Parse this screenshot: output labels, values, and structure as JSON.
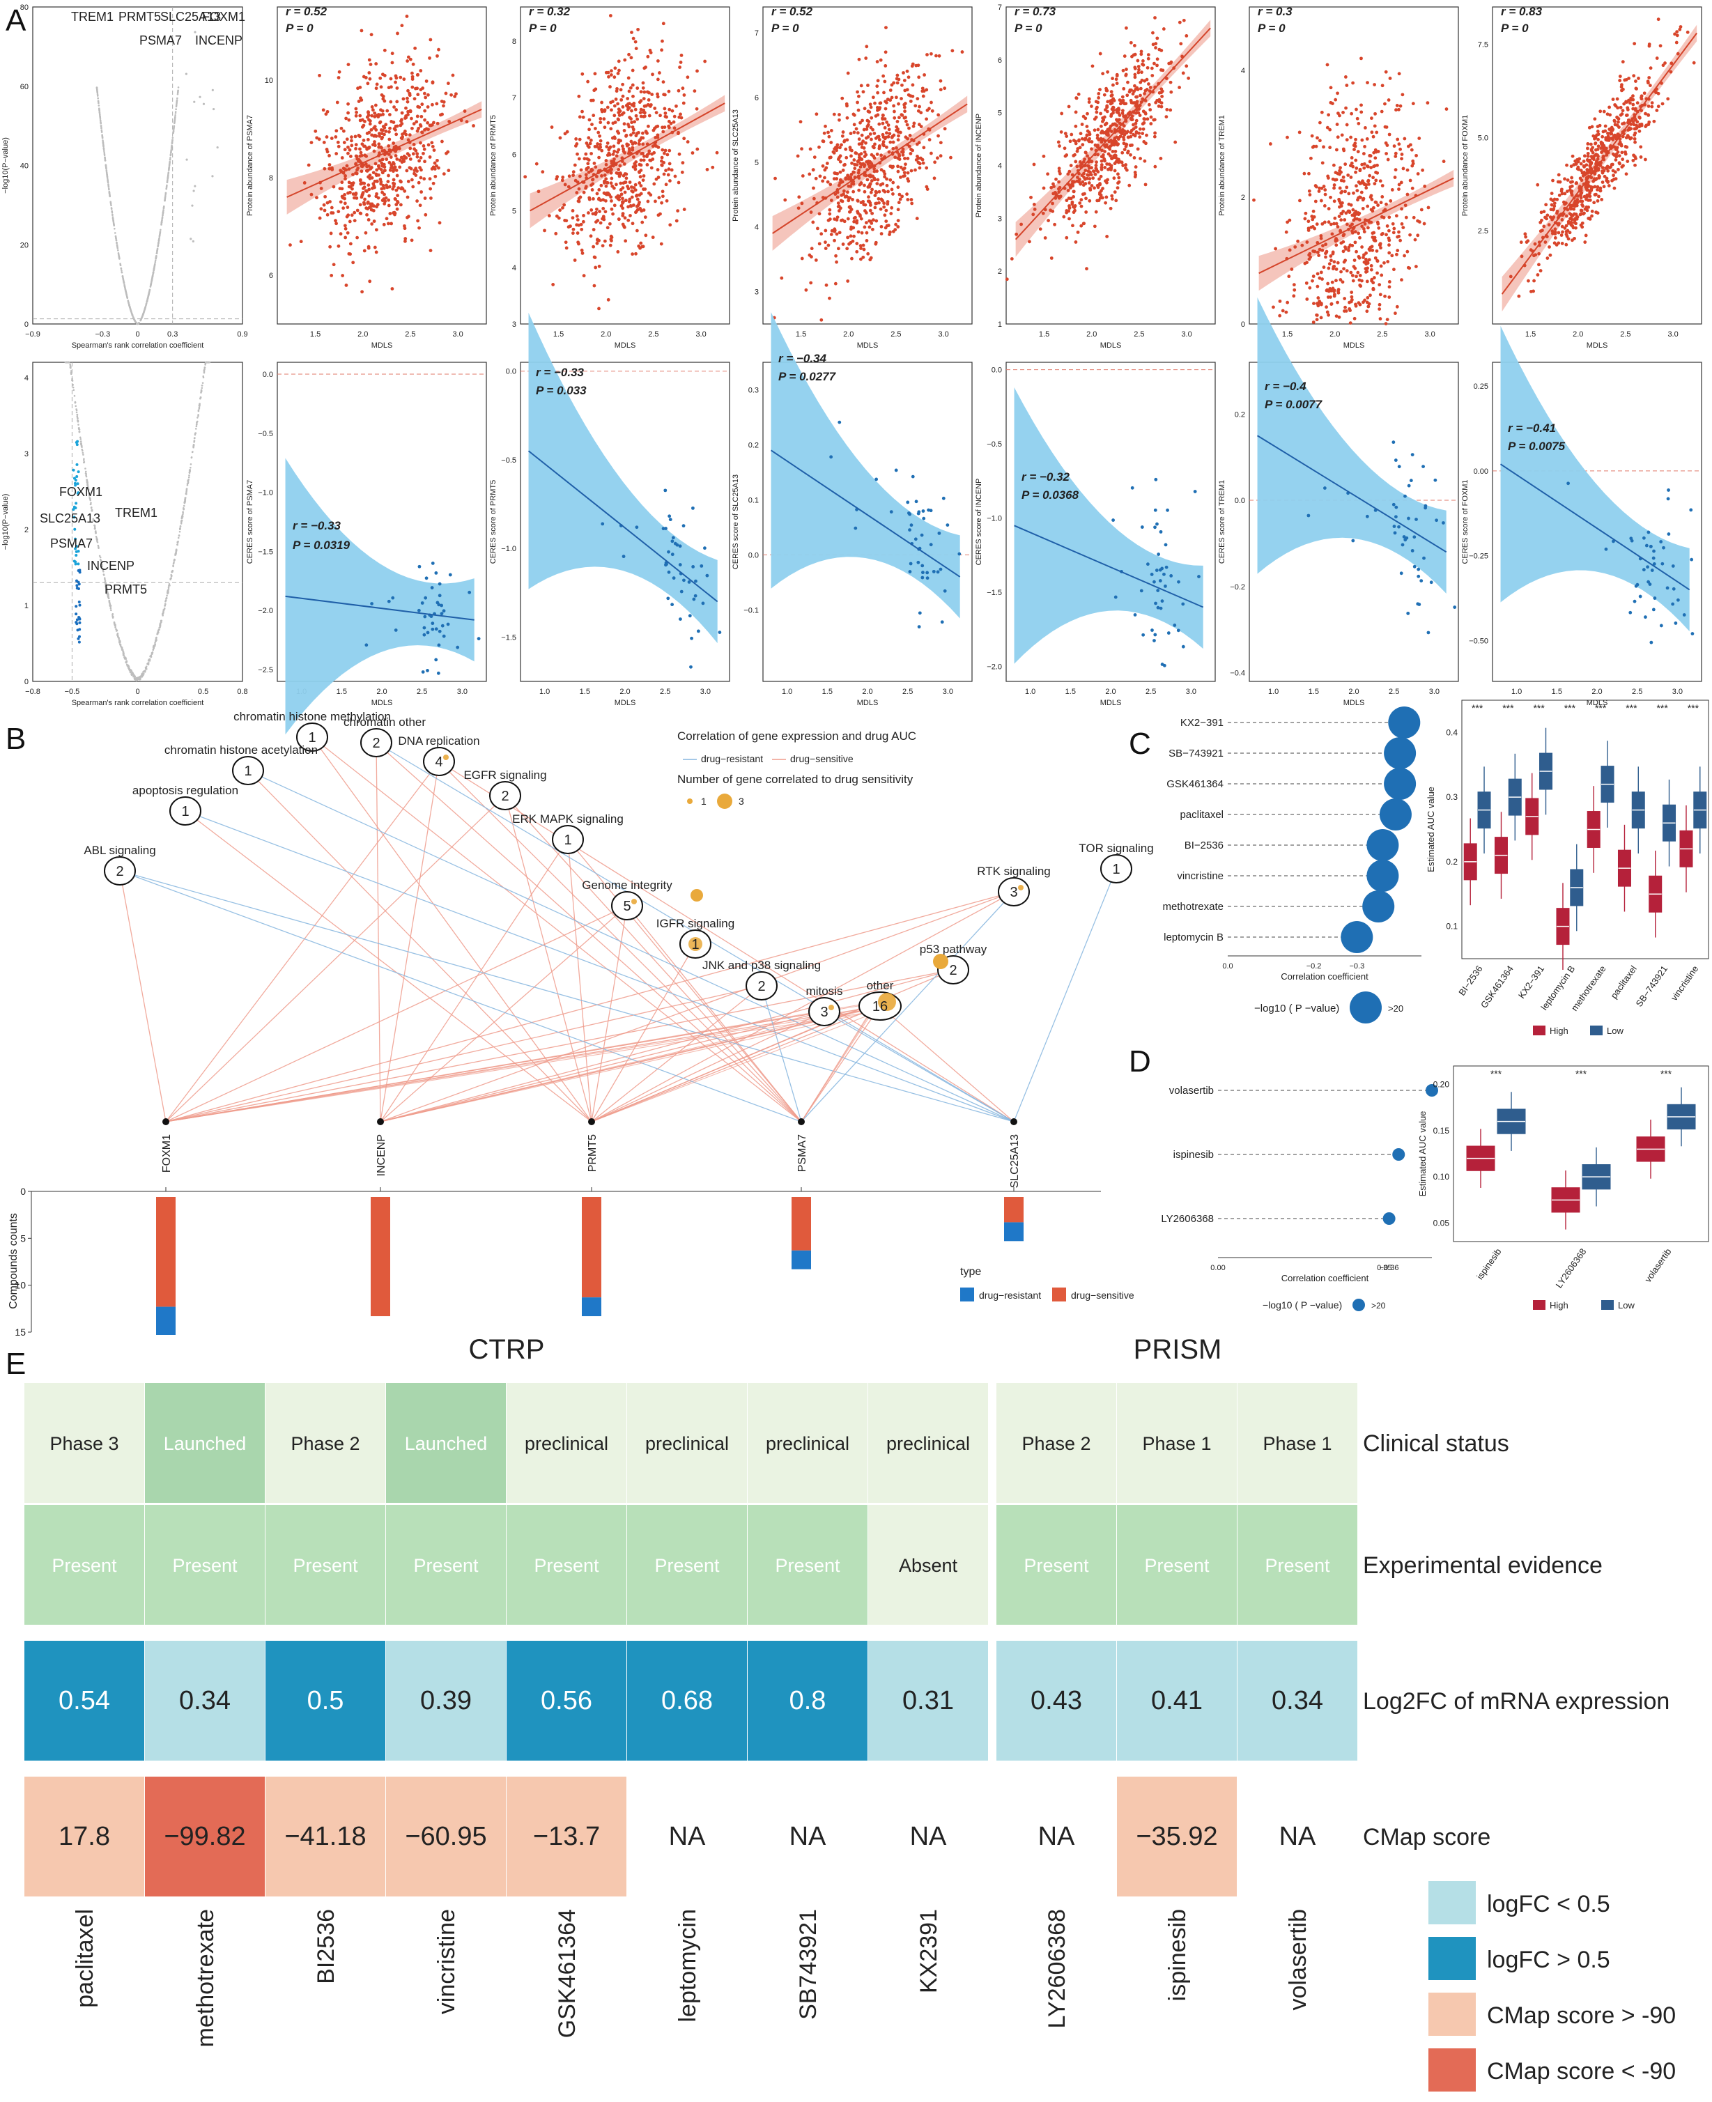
{
  "panel_letters": [
    "A",
    "B",
    "C",
    "D",
    "E"
  ],
  "colors": {
    "scatter_pos": "#d8452b",
    "band_pos": "#f2b7ab",
    "scatter_neg": "#1f6fb4",
    "band_neg": "#8fd0ee",
    "resistant": "#1f78c8",
    "sensitive": "#e05a3c",
    "high": "#b5213a",
    "low": "#2f5d8e",
    "clinical_launched": "#a9d6ad",
    "clinical_other": "#eaf3e2",
    "evidence_present": "#b8e0b9",
    "evidence_absent": "#eaf3e2",
    "logfc_low": "#b5dfe6",
    "logfc_high": "#1f93bf",
    "cmap_gt": "#f6c8af",
    "cmap_lt": "#e36b56",
    "node_fill": "#e9a93b"
  },
  "chart_data": [
    {
      "id": "A_top_volcano",
      "type": "scatter",
      "xlabel": "Spearman's rank correlation coefficient",
      "ylabel": "−log10(P−value)",
      "xticks": [
        "−0.9",
        "−0.3",
        "0",
        "0.3",
        "0.9"
      ],
      "yticks": [
        "0",
        "20",
        "40",
        "60",
        "80"
      ],
      "xlim": [
        -0.9,
        0.9
      ],
      "ylim": [
        0,
        80
      ],
      "labels": [
        "TREM1",
        "PRMT5",
        "SLC25A13",
        "FOXM1",
        "PSMA7",
        "INCENP"
      ]
    },
    {
      "id": "A_bottom_volcano",
      "type": "scatter",
      "xlabel": "Spearman's rank correlation coefficient",
      "ylabel": "−log10(P−value)",
      "xticks": [
        "−0.8",
        "−0.5",
        "0",
        "0.5",
        "0.8"
      ],
      "yticks": [
        "0",
        "1",
        "2",
        "3",
        "4"
      ],
      "xlim": [
        -0.8,
        0.8
      ],
      "ylim": [
        0,
        4.2
      ],
      "labels": [
        "FOXM1",
        "TREM1",
        "SLC25A13",
        "PSMA7",
        "INCENP",
        "PRMT5"
      ]
    },
    {
      "id": "A_top_scatters",
      "type": "scatter",
      "xlabel": "MDLS",
      "series": [
        {
          "gene": "PSMA7",
          "ylabel": "Protein abundance of PSMA7",
          "r": "r = 0.52",
          "p": "P = 0",
          "ylim": [
            5,
            11.5
          ],
          "yticks": [
            "6",
            "8",
            "10"
          ],
          "fit": [
            7.6,
            9.4
          ],
          "n": 650,
          "noise": 0.9
        },
        {
          "gene": "PRMT5",
          "ylabel": "Protein abundance of PRMT5",
          "r": "r = 0.32",
          "p": "P = 0",
          "ylim": [
            3,
            8.6
          ],
          "yticks": [
            "3",
            "4",
            "5",
            "6",
            "7",
            "8"
          ],
          "fit": [
            5.0,
            6.9
          ],
          "n": 650,
          "noise": 0.8
        },
        {
          "gene": "SLC25A13",
          "ylabel": "Protein abundance of SLC25A13",
          "r": "r = 0.52",
          "p": "P = 0",
          "ylim": [
            2.5,
            7.4
          ],
          "yticks": [
            "3",
            "4",
            "5",
            "6",
            "7"
          ],
          "fit": [
            3.9,
            5.9
          ],
          "n": 650,
          "noise": 0.7
        },
        {
          "gene": "INCENP",
          "ylabel": "Protein abundance of INCENP",
          "r": "r = 0.73",
          "p": "P = 0",
          "ylim": [
            1,
            7
          ],
          "yticks": [
            "1",
            "2",
            "3",
            "4",
            "5",
            "6",
            "7"
          ],
          "fit": [
            2.6,
            6.6
          ],
          "n": 650,
          "noise": 0.6
        },
        {
          "gene": "TREM1",
          "ylabel": "Protein abundance of TREM1",
          "r": "r = 0.3",
          "p": "P = 0",
          "ylim": [
            0,
            5
          ],
          "yticks": [
            "0",
            "2",
            "4"
          ],
          "fit": [
            0.8,
            2.3
          ],
          "n": 650,
          "noise": 1.0
        },
        {
          "gene": "FOXM1",
          "ylabel": "Protein abundance of FOXM1",
          "r": "r = 0.83",
          "p": "P = 0",
          "ylim": [
            0,
            8.5
          ],
          "yticks": [
            "2.5",
            "5.0",
            "7.5"
          ],
          "fit": [
            0.8,
            7.8
          ],
          "n": 650,
          "noise": 0.6
        }
      ],
      "xlim": [
        1.1,
        3.3
      ],
      "xticks": [
        "1.5",
        "2.0",
        "2.5",
        "3.0"
      ]
    },
    {
      "id": "A_bottom_scatters",
      "type": "scatter",
      "xlabel": "MDLS",
      "series": [
        {
          "gene": "PSMA7",
          "ylabel": "CERES score of PSMA7",
          "r": "r = −0.33",
          "p": "P = 0.0319",
          "ylim": [
            -2.6,
            0.1
          ],
          "yticks": [
            "0.0",
            "−0.5",
            "−1.0",
            "−1.5",
            "−2.0",
            "−2.5"
          ],
          "fit": [
            -1.88,
            -2.08
          ]
        },
        {
          "gene": "PRMT5",
          "ylabel": "CERES score of PRMT5",
          "r": "r = −0.33",
          "p": "P = 0.033",
          "ylim": [
            -1.75,
            0.05
          ],
          "yticks": [
            "0.0",
            "−0.5",
            "−1.0",
            "−1.5"
          ],
          "fit": [
            -0.45,
            -1.3
          ]
        },
        {
          "gene": "SLC25A13",
          "ylabel": "CERES score of SLC25A13",
          "r": "r = −0.34",
          "p": "P = 0.0277",
          "ylim": [
            -0.23,
            0.35
          ],
          "yticks": [
            "0.3",
            "0.2",
            "0.1",
            "0.0",
            "−0.1"
          ],
          "fit": [
            0.19,
            -0.04
          ]
        },
        {
          "gene": "INCENP",
          "ylabel": "CERES score of INCENP",
          "r": "r = −0.32",
          "p": "P = 0.0368",
          "ylim": [
            -2.1,
            0.05
          ],
          "yticks": [
            "0.0",
            "−0.5",
            "−1.0",
            "−1.5",
            "−2.0"
          ],
          "fit": [
            -1.05,
            -1.6
          ]
        },
        {
          "gene": "TREM1",
          "ylabel": "CERES score of TREM1",
          "r": "r = −0.4",
          "p": "P = 0.0077",
          "ylim": [
            -0.42,
            0.32
          ],
          "yticks": [
            "0.2",
            "0.0",
            "−0.2",
            "−0.4"
          ],
          "fit": [
            0.15,
            -0.12
          ]
        },
        {
          "gene": "FOXM1",
          "ylabel": "CERES score of FOXM1",
          "r": "r = −0.41",
          "p": "P = 0.0075",
          "ylim": [
            -0.62,
            0.32
          ],
          "yticks": [
            "0.25",
            "0.00",
            "−0.25",
            "−0.50"
          ],
          "fit": [
            0.02,
            -0.35
          ]
        }
      ],
      "xlim": [
        0.7,
        3.3
      ],
      "xticks": [
        "1.0",
        "1.5",
        "2.0",
        "2.5",
        "3.0"
      ]
    },
    {
      "id": "B_network",
      "type": "network",
      "legend_title": "Correlation of gene expression and drug AUC",
      "legend_items": [
        "drug−resistant",
        "drug−sensitive"
      ],
      "size_title": "Number of gene correlated to drug sensitivity",
      "size_items": [
        "1",
        "3"
      ],
      "pathways": [
        {
          "name": "chromatin  histone methylation",
          "count": "1"
        },
        {
          "name": "chromatin  other",
          "count": "2"
        },
        {
          "name": "DNA replication",
          "count": "4"
        },
        {
          "name": "chromatin  histone acetylation",
          "count": "1"
        },
        {
          "name": "EGFR signaling",
          "count": "2"
        },
        {
          "name": "apoptosis regulation",
          "count": "1"
        },
        {
          "name": "ERK MAPK signaling",
          "count": "1"
        },
        {
          "name": "ABL signaling",
          "count": "2"
        },
        {
          "name": "TOR signaling",
          "count": "1"
        },
        {
          "name": "Genome integrity",
          "count": "5"
        },
        {
          "name": "RTK signaling",
          "count": "3"
        },
        {
          "name": "IGFR signaling",
          "count": "1"
        },
        {
          "name": "p53 pathway",
          "count": "2"
        },
        {
          "name": "JNK and p38 signaling",
          "count": "2"
        },
        {
          "name": "other",
          "count": "16"
        },
        {
          "name": "mitosis",
          "count": "3"
        }
      ],
      "genes": [
        "FOXM1",
        "INCENP",
        "PRMT5",
        "PSMA7",
        "SLC25A13"
      ]
    },
    {
      "id": "B_bars",
      "type": "bar",
      "ylabel": "Compounds counts",
      "yticks": [
        "0",
        "5",
        "10",
        "15"
      ],
      "ylim": [
        0,
        15
      ],
      "categories": [
        "FOXM1",
        "INCENP",
        "PRMT5",
        "PSMA7",
        "SLC25A13"
      ],
      "series": [
        {
          "name": "drug−sensitive",
          "values": [
            12,
            13,
            11,
            6,
            3
          ]
        },
        {
          "name": "drug−resistant",
          "values": [
            3,
            0,
            2,
            2,
            2
          ]
        }
      ],
      "legend_title": "type",
      "legend_items": [
        "drug−resistant",
        "drug−sensitive"
      ]
    },
    {
      "id": "C_dot",
      "type": "scatter",
      "categories": [
        "KX2−391",
        "SB−743921",
        "GSK461364",
        "paclitaxel",
        "BI−2536",
        "vincristine",
        "methotrexate",
        "leptomycin B"
      ],
      "values": [
        -0.41,
        -0.4,
        -0.4,
        -0.39,
        -0.36,
        -0.36,
        -0.35,
        -0.3
      ],
      "xlabel": "Correlation coefficient",
      "xticks": [
        "0.0",
        "−0.2",
        "−0.3"
      ],
      "size_legend": "−log10 ( P −value)",
      "size_item": ">20"
    },
    {
      "id": "C_box",
      "type": "box",
      "ylabel": "Estimated AUC value",
      "yticks": [
        "0.1",
        "0.2",
        "0.3",
        "0.4"
      ],
      "ylim": [
        0.05,
        0.45
      ],
      "categories": [
        "BI−2536",
        "GSK461364",
        "KX2−391",
        "leptomycin B",
        "methotrexate",
        "paclitaxel",
        "SB−743921",
        "vincristine"
      ],
      "sig": "***",
      "high_median": [
        0.2,
        0.21,
        0.27,
        0.1,
        0.25,
        0.19,
        0.15,
        0.22
      ],
      "low_median": [
        0.28,
        0.3,
        0.34,
        0.16,
        0.32,
        0.28,
        0.26,
        0.28
      ],
      "legend": [
        "High",
        "Low"
      ]
    },
    {
      "id": "D_dot",
      "type": "scatter",
      "categories": [
        "volasertib",
        "ispinesib",
        "LY2606368"
      ],
      "values": [
        -0.45,
        -0.38,
        -0.36
      ],
      "xlabel": "Correlation coefficient",
      "xticks": [
        "0.00",
        "−0.36",
        "0.35"
      ],
      "size_legend": "−log10 ( P −value)",
      "size_item": ">20"
    },
    {
      "id": "D_box",
      "type": "box",
      "ylabel": "Estimated AUC value",
      "yticks": [
        "0.05",
        "0.10",
        "0.15",
        "0.20"
      ],
      "ylim": [
        0.03,
        0.22
      ],
      "categories": [
        "ispinesib",
        "LY2606368",
        "volasertib"
      ],
      "sig": "***",
      "high_median": [
        0.12,
        0.075,
        0.13
      ],
      "low_median": [
        0.16,
        0.1,
        0.165
      ],
      "legend": [
        "High",
        "Low"
      ]
    },
    {
      "id": "E_table",
      "type": "table",
      "groups": [
        "CTRP",
        "PRISM"
      ],
      "drugs": [
        "paclitaxel",
        "methotrexate",
        "BI2536",
        "vincristine",
        "GSK461364",
        "leptomycin",
        "SB743921",
        "KX2391",
        "LY2606368",
        "ispinesib",
        "volasertib"
      ],
      "row_labels": [
        "Clinical status",
        "Experimental evidence",
        "Log2FC of mRNA expression",
        "CMap score"
      ],
      "clinical": [
        "Phase 3",
        "Launched",
        "Phase 2",
        "Launched",
        "preclinical",
        "preclinical",
        "preclinical",
        "preclinical",
        "Phase 2",
        "Phase 1",
        "Phase 1"
      ],
      "evidence": [
        "Present",
        "Present",
        "Present",
        "Present",
        "Present",
        "Present",
        "Present",
        "Absent",
        "Present",
        "Present",
        "Present"
      ],
      "logfc": [
        "0.54",
        "0.34",
        "0.5",
        "0.39",
        "0.56",
        "0.68",
        "0.8",
        "0.31",
        "0.43",
        "0.41",
        "0.34"
      ],
      "cmap": [
        "17.8",
        "−99.82",
        "−41.18",
        "−60.95",
        "−13.7",
        "NA",
        "NA",
        "NA",
        "NA",
        "−35.92",
        "NA"
      ],
      "legend": [
        "logFC < 0.5",
        "logFC > 0.5",
        "CMap score > -90",
        "CMap score < -90"
      ]
    }
  ]
}
